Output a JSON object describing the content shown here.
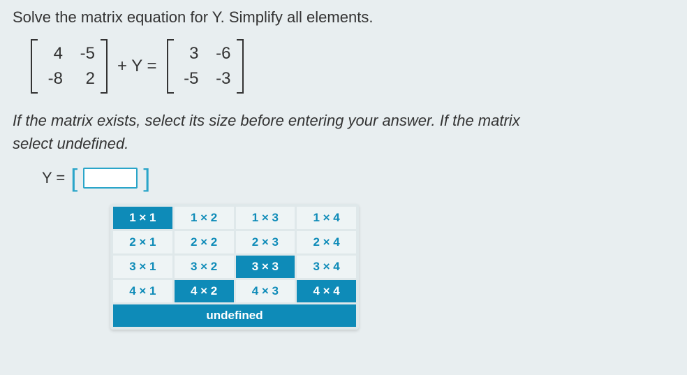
{
  "question": "Solve the matrix equation for Y. Simplify all elements.",
  "equation": {
    "left_matrix": {
      "rows": [
        [
          "4",
          "-5"
        ],
        [
          "-8",
          "2"
        ]
      ],
      "bracket_color": "#333333"
    },
    "middle_text": "+ Y =",
    "right_matrix": {
      "rows": [
        [
          "3",
          "-6"
        ],
        [
          "-5",
          "-3"
        ]
      ],
      "bracket_color": "#333333"
    }
  },
  "instruction_line1": "If the matrix exists, select its size before entering your answer. If the matrix",
  "instruction_line2": "select undefined.",
  "answer": {
    "label": "Y =",
    "bracket_color": "#2aa5c9",
    "input_value": ""
  },
  "size_selector": {
    "cells": [
      {
        "label": "1 × 1",
        "style": "primary"
      },
      {
        "label": "1 × 2",
        "style": "alt"
      },
      {
        "label": "1 × 3",
        "style": "alt"
      },
      {
        "label": "1 × 4",
        "style": "alt"
      },
      {
        "label": "2 × 1",
        "style": "alt"
      },
      {
        "label": "2 × 2",
        "style": "alt"
      },
      {
        "label": "2 × 3",
        "style": "alt"
      },
      {
        "label": "2 × 4",
        "style": "alt"
      },
      {
        "label": "3 × 1",
        "style": "alt"
      },
      {
        "label": "3 × 2",
        "style": "alt"
      },
      {
        "label": "3 × 3",
        "style": "primary"
      },
      {
        "label": "3 × 4",
        "style": "alt"
      },
      {
        "label": "4 × 1",
        "style": "alt"
      },
      {
        "label": "4 × 2",
        "style": "primary"
      },
      {
        "label": "4 × 3",
        "style": "alt"
      },
      {
        "label": "4 × 4",
        "style": "primary"
      }
    ],
    "undefined_label": "undefined",
    "primary_bg": "#0e8bb8",
    "primary_fg": "#ffffff",
    "alt_bg": "#eef4f5",
    "alt_fg": "#0e8bb8"
  },
  "colors": {
    "page_bg": "#e8eef0",
    "text": "#333333"
  }
}
